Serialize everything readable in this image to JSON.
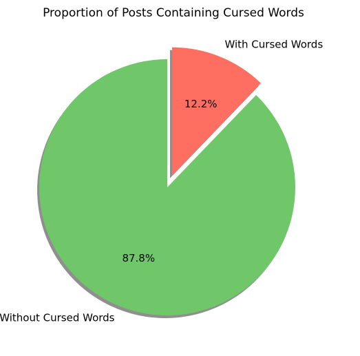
{
  "chart_data": {
    "type": "pie",
    "title": "Proportion of Posts Containing Cursed Words",
    "slices": [
      {
        "label": "With Cursed Words",
        "value": 12.2,
        "display": "12.2%",
        "color": "#ff6f61",
        "exploded": true
      },
      {
        "label": "Without Cursed Words",
        "value": 87.8,
        "display": "87.8%",
        "color": "#6fc76a",
        "exploded": false
      }
    ],
    "start_angle_deg": 90,
    "direction": "clockwise",
    "shadow": true,
    "shadow_color": "#8f8f8f"
  }
}
